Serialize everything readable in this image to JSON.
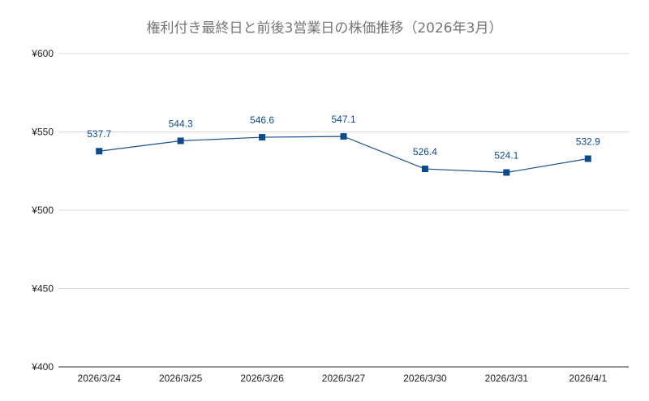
{
  "chart_data": {
    "type": "line",
    "title": "権利付き最終日と前後3営業日の株価推移（2026年3月）",
    "xlabel": "",
    "ylabel": "",
    "categories": [
      "2026/3/24",
      "2026/3/25",
      "2026/3/26",
      "2026/3/27",
      "2026/3/30",
      "2026/3/31",
      "2026/4/1"
    ],
    "series": [
      {
        "values": [
          537.7,
          544.3,
          546.6,
          547.1,
          526.4,
          524.1,
          532.9
        ],
        "data_labels": [
          "537.7",
          "544.3",
          "546.6",
          "547.1",
          "526.4",
          "524.1",
          "532.9"
        ]
      }
    ],
    "ylim": [
      400,
      600
    ],
    "yticks": [
      400,
      450,
      500,
      550,
      600
    ],
    "ytick_labels": [
      "¥400",
      "¥450",
      "¥500",
      "¥550",
      "¥600"
    ],
    "grid": true,
    "legend": "none",
    "marker": "square",
    "colors": {
      "line": "#1f4e89",
      "marker": "#0b4a8b",
      "data_label": "#0b4a8b",
      "title": "#757575",
      "grid": "#d9d9d9"
    }
  }
}
